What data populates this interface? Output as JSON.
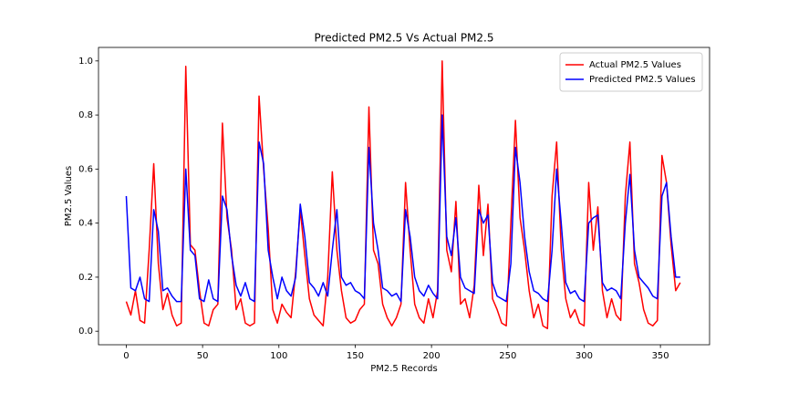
{
  "chart_data": {
    "type": "line",
    "title": "Predicted PM2.5  Vs Actual PM2.5",
    "x_label": "PM2.5 Records",
    "y_label": "PM2.5 Values",
    "x": [
      0,
      3,
      6,
      9,
      12,
      15,
      18,
      21,
      24,
      27,
      30,
      33,
      36,
      39,
      42,
      45,
      48,
      51,
      54,
      57,
      60,
      63,
      66,
      69,
      72,
      75,
      78,
      81,
      84,
      87,
      90,
      93,
      96,
      99,
      102,
      105,
      108,
      111,
      114,
      117,
      120,
      123,
      126,
      129,
      132,
      135,
      138,
      141,
      144,
      147,
      150,
      153,
      156,
      159,
      162,
      165,
      168,
      171,
      174,
      177,
      180,
      183,
      186,
      189,
      192,
      195,
      198,
      201,
      204,
      207,
      210,
      213,
      216,
      219,
      222,
      225,
      228,
      231,
      234,
      237,
      240,
      243,
      246,
      249,
      252,
      255,
      258,
      261,
      264,
      267,
      270,
      273,
      276,
      279,
      282,
      285,
      288,
      291,
      294,
      297,
      300,
      303,
      306,
      309,
      312,
      315,
      318,
      321,
      324,
      327,
      330,
      333,
      336,
      339,
      342,
      345,
      348,
      351,
      354,
      357,
      360,
      363
    ],
    "series": [
      {
        "name": "Actual PM2.5 Values",
        "color": "#ff0000",
        "values": [
          0.11,
          0.06,
          0.15,
          0.04,
          0.03,
          0.3,
          0.62,
          0.25,
          0.08,
          0.14,
          0.06,
          0.02,
          0.03,
          0.98,
          0.32,
          0.3,
          0.15,
          0.03,
          0.02,
          0.08,
          0.1,
          0.77,
          0.42,
          0.3,
          0.08,
          0.12,
          0.03,
          0.02,
          0.03,
          0.87,
          0.6,
          0.38,
          0.08,
          0.03,
          0.1,
          0.07,
          0.05,
          0.22,
          0.45,
          0.28,
          0.12,
          0.06,
          0.04,
          0.02,
          0.2,
          0.59,
          0.3,
          0.15,
          0.05,
          0.03,
          0.04,
          0.08,
          0.1,
          0.83,
          0.3,
          0.25,
          0.1,
          0.05,
          0.02,
          0.05,
          0.1,
          0.55,
          0.3,
          0.1,
          0.05,
          0.03,
          0.12,
          0.05,
          0.15,
          1.0,
          0.3,
          0.22,
          0.48,
          0.1,
          0.12,
          0.05,
          0.17,
          0.54,
          0.28,
          0.47,
          0.12,
          0.08,
          0.03,
          0.02,
          0.4,
          0.78,
          0.42,
          0.3,
          0.15,
          0.05,
          0.1,
          0.02,
          0.01,
          0.5,
          0.7,
          0.3,
          0.12,
          0.05,
          0.08,
          0.03,
          0.02,
          0.55,
          0.3,
          0.46,
          0.15,
          0.05,
          0.12,
          0.06,
          0.04,
          0.5,
          0.7,
          0.25,
          0.18,
          0.08,
          0.03,
          0.02,
          0.04,
          0.65,
          0.55,
          0.32,
          0.15,
          0.18
        ]
      },
      {
        "name": "Predicted PM2.5 Values",
        "color": "#0000ff",
        "values": [
          0.5,
          0.16,
          0.15,
          0.2,
          0.12,
          0.11,
          0.45,
          0.37,
          0.15,
          0.16,
          0.13,
          0.11,
          0.11,
          0.6,
          0.3,
          0.28,
          0.12,
          0.11,
          0.19,
          0.12,
          0.11,
          0.5,
          0.45,
          0.28,
          0.17,
          0.13,
          0.18,
          0.12,
          0.11,
          0.7,
          0.62,
          0.3,
          0.2,
          0.12,
          0.2,
          0.15,
          0.13,
          0.2,
          0.47,
          0.35,
          0.18,
          0.16,
          0.13,
          0.18,
          0.13,
          0.3,
          0.45,
          0.2,
          0.17,
          0.18,
          0.15,
          0.14,
          0.12,
          0.68,
          0.4,
          0.3,
          0.16,
          0.15,
          0.13,
          0.14,
          0.11,
          0.45,
          0.35,
          0.2,
          0.15,
          0.13,
          0.17,
          0.14,
          0.12,
          0.8,
          0.35,
          0.28,
          0.42,
          0.2,
          0.16,
          0.15,
          0.14,
          0.45,
          0.4,
          0.43,
          0.18,
          0.13,
          0.12,
          0.11,
          0.25,
          0.68,
          0.55,
          0.35,
          0.22,
          0.15,
          0.14,
          0.12,
          0.11,
          0.3,
          0.6,
          0.4,
          0.18,
          0.14,
          0.15,
          0.12,
          0.11,
          0.4,
          0.42,
          0.43,
          0.18,
          0.15,
          0.16,
          0.15,
          0.12,
          0.4,
          0.58,
          0.3,
          0.2,
          0.18,
          0.16,
          0.13,
          0.12,
          0.5,
          0.55,
          0.35,
          0.2,
          0.2
        ]
      }
    ],
    "xlim": [
      -18.2,
      382.2
    ],
    "ylim": [
      -0.05,
      1.05
    ],
    "xticks": [
      0,
      50,
      100,
      150,
      200,
      250,
      300,
      350
    ],
    "yticks": [
      {
        "value": 0,
        "label": "0.0"
      },
      0.2,
      0.4,
      0.6,
      0.8,
      {
        "value": 1,
        "label": "1.0"
      }
    ],
    "legend": "upper right"
  }
}
